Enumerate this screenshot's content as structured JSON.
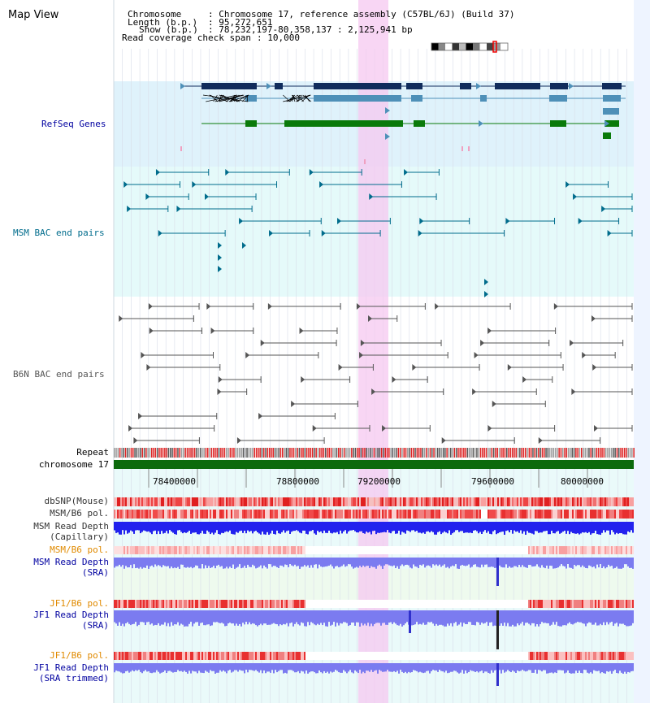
{
  "app": {
    "title": "Map View"
  },
  "header": {
    "chromosome_label": "Chromosome",
    "chromosome_value": ": Chromosome 17, reference assembly (C57BL/6J) (Build 37)",
    "length_label": "Length (b.p.)",
    "length_value": ": 95,272,651",
    "show_label": "Show (b.p.)",
    "show_value": ": 78,232,197-80,358,137 : 2,125,941 bp",
    "coverage_label": "Read coverage check span",
    "coverage_value": ": 10,000"
  },
  "tracks": {
    "refseq": "RefSeq Genes",
    "msm_bac": "MSM BAC end pairs",
    "b6n_bac": "B6N BAC end pairs",
    "repeat": "Repeat",
    "chromosome": "chromosome 17",
    "dbsnp": "dbSNP(Mouse)",
    "msm_b6_pol": "MSM/B6 pol.",
    "msm_depth_cap_1": "MSM Read Depth",
    "msm_depth_cap_2": "(Capillary)",
    "msm_b6_pol_2": "MSM/B6 pol.",
    "msm_depth_sra_1": "MSM Read Depth",
    "msm_depth_sra_2": "(SRA)",
    "jf1_pol": "JF1/B6 pol.",
    "jf1_depth_sra_1": "JF1 Read Depth",
    "jf1_depth_sra_2": "(SRA)",
    "jf1_pol_2": "JF1/B6 pol.",
    "jf1_depth_trim_1": "JF1 Read Depth",
    "jf1_depth_trim_2": "(SRA trimmed)"
  },
  "axis": {
    "ticks": [
      "78400000",
      "78800000",
      "79200000",
      "79600000",
      "80000000"
    ]
  },
  "colors": {
    "refseq_bg": "#dff2fb",
    "msm_bac_bg": "#e5fafa",
    "highlight": "#f5c8f0",
    "refseq_dark": "#102c5c",
    "refseq_mid": "#4e90b8",
    "refseq_green": "#0a7a0a",
    "msm_line": "#006c8c",
    "b6n_line": "#555555",
    "chromosome_bar": "#0c6a0c",
    "depth_blue": "#2222ee",
    "depth_light": "#7b7bf0",
    "snp_red": "#e33",
    "label_blue": "#0000a0",
    "label_orange": "#e08a00",
    "label_teal": "#006c8c"
  },
  "icons": [
    "chromosome-ideogram-icon"
  ]
}
